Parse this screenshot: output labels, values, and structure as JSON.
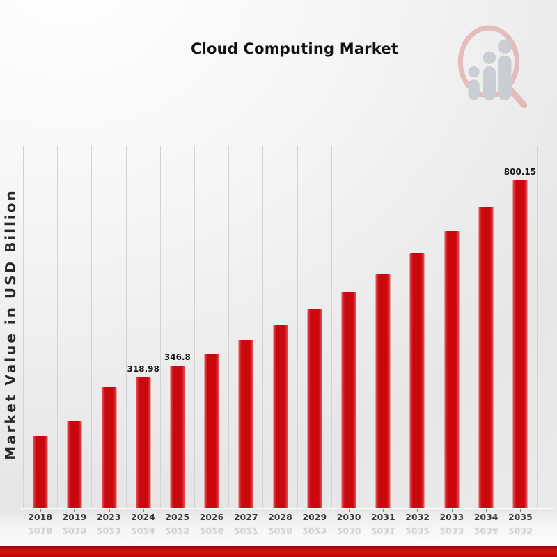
{
  "page": {
    "title": "Cloud Computing Market"
  },
  "watermark": {
    "name": "magnifier-bar-figures-logo"
  },
  "colors": {
    "bar": "#cb070e",
    "bar_edge": "#e4555a",
    "footer_stripe": "#cb0909",
    "gridline": "#d3d3d3",
    "axis_line": "#979797"
  },
  "chart_data": {
    "type": "bar",
    "title": "Cloud Computing Market",
    "xlabel": "",
    "ylabel": "Market Value in USD Billion",
    "ylim": [
      0,
      886
    ],
    "grid": "vertical-category-boundaries",
    "legend": "none",
    "bar_color": "#cb070e",
    "bar_edge_color": "#e4555a",
    "categories": [
      "2018",
      "2019",
      "2023",
      "2024",
      "2025",
      "2026",
      "2027",
      "2028",
      "2029",
      "2030",
      "2031",
      "2032",
      "2033",
      "2034",
      "2035"
    ],
    "values": [
      175,
      212,
      295,
      318.98,
      346.8,
      377,
      410,
      446,
      485,
      527,
      573,
      622,
      677,
      736,
      800.15
    ],
    "data_labels": [
      "",
      "",
      "",
      "318.98",
      "346.8",
      "",
      "",
      "",
      "",
      "",
      "",
      "",
      "",
      "",
      "800.15"
    ]
  }
}
